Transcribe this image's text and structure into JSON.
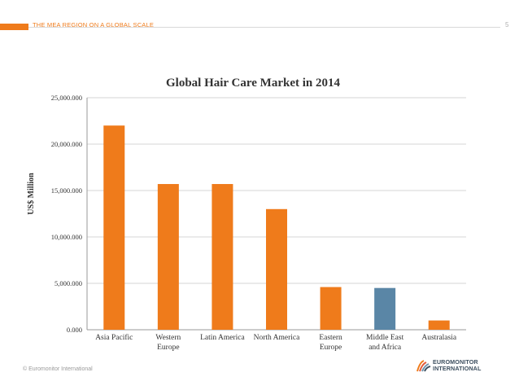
{
  "header": {
    "title": "THE MEA REGION ON A GLOBAL SCALE",
    "slide_number": "5",
    "accent_color": "#ef7b1b"
  },
  "footer": {
    "copyright": "© Euromonitor International",
    "logo_line1": "EUROMONITOR",
    "logo_line2": "INTERNATIONAL"
  },
  "chart_data": {
    "type": "bar",
    "title": "Global Hair Care Market in 2014",
    "xlabel": "",
    "ylabel": "US$ Million",
    "ylim": [
      0,
      25000
    ],
    "yticks": [
      0,
      5000,
      10000,
      15000,
      20000,
      25000
    ],
    "ytick_labels": [
      "0.000",
      "5,000.000",
      "10,000.000",
      "15,000.000",
      "20,000.000",
      "25,000.000"
    ],
    "grid": true,
    "categories": [
      "Asia Pacific",
      "Western Europe",
      "Latin America",
      "North America",
      "Eastern Europe",
      "Middle East and Africa",
      "Australasia"
    ],
    "category_labels": [
      [
        "Asia Pacific"
      ],
      [
        "Western",
        "Europe"
      ],
      [
        "Latin America"
      ],
      [
        "North America"
      ],
      [
        "Eastern",
        "Europe"
      ],
      [
        "Middle East",
        "and Africa"
      ],
      [
        "Australasia"
      ]
    ],
    "values": [
      22000,
      15700,
      15700,
      13000,
      4600,
      4500,
      1000
    ],
    "colors": [
      "#ef7b1b",
      "#ef7b1b",
      "#ef7b1b",
      "#ef7b1b",
      "#ef7b1b",
      "#5a86a6",
      "#ef7b1b"
    ]
  }
}
